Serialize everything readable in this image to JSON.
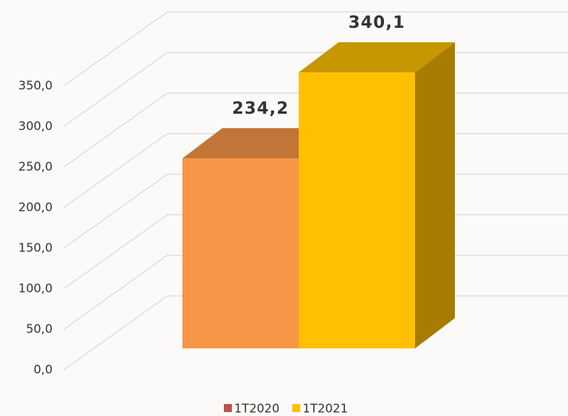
{
  "chart_data": {
    "type": "bar3d",
    "series": [
      {
        "name": "1T2020",
        "color": "#f79646",
        "legend_color": "#c0504d",
        "values": [
          234.2
        ],
        "value_labels": [
          "234,2"
        ]
      },
      {
        "name": "1T2021",
        "color": "#ffc000",
        "legend_color": "#ffc000",
        "values": [
          340.1
        ],
        "value_labels": [
          "340,1"
        ]
      }
    ],
    "ylim": [
      0,
      350
    ],
    "yticks": [
      {
        "value": 0,
        "label": "0,0"
      },
      {
        "value": 50,
        "label": "50,0"
      },
      {
        "value": 100,
        "label": "100,0"
      },
      {
        "value": 150,
        "label": "150,0"
      },
      {
        "value": 200,
        "label": "200,0"
      },
      {
        "value": 250,
        "label": "250,0"
      },
      {
        "value": 300,
        "label": "300,0"
      },
      {
        "value": 350,
        "label": "350,0"
      }
    ],
    "grid": true
  }
}
